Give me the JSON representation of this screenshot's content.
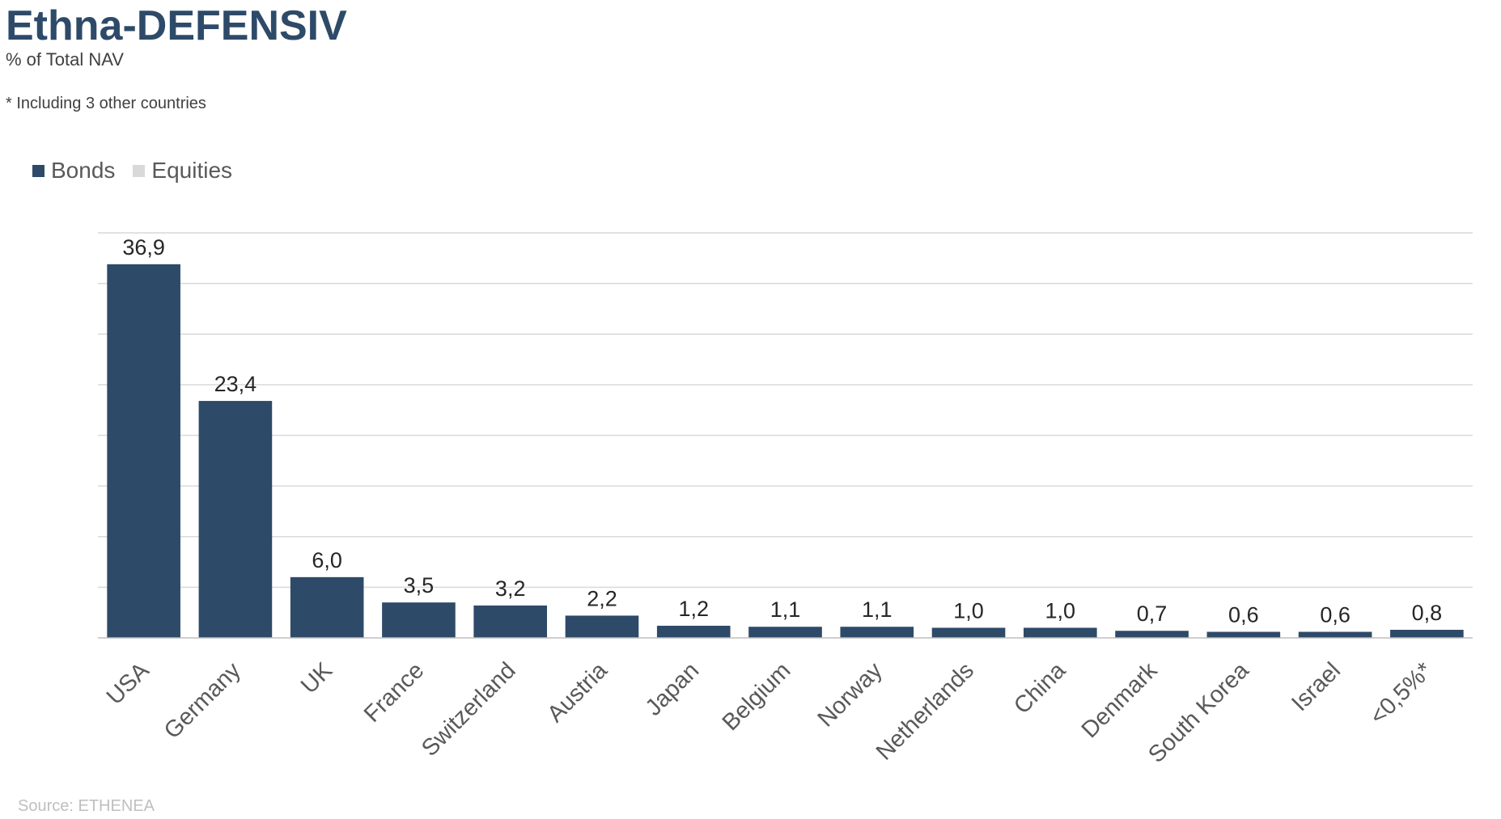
{
  "header": {
    "title": "Ethna-DEFENSIV",
    "subtitle": "% of Total NAV",
    "footnote": "* Including 3 other countries"
  },
  "legend": {
    "items": [
      {
        "label": "Bonds",
        "color": "#2e4a69"
      },
      {
        "label": "Equities",
        "color": "#d9d9d9"
      }
    ]
  },
  "source": "Source: ETHENEA",
  "colors": {
    "bonds": "#2e4a69",
    "equities": "#d9d9d9",
    "gridline": "#d9d9d9",
    "axis": "#bfbfbf"
  },
  "chart_data": {
    "type": "bar",
    "title": "Ethna-DEFENSIV",
    "subtitle": "% of Total NAV",
    "xlabel": "",
    "ylabel": "",
    "categories": [
      "USA",
      "Germany",
      "UK",
      "France",
      "Switzerland",
      "Austria",
      "Japan",
      "Belgium",
      "Norway",
      "Netherlands",
      "China",
      "Denmark",
      "South Korea",
      "Israel",
      "<0,5%*"
    ],
    "series": [
      {
        "name": "Bonds",
        "values": [
          36.9,
          23.4,
          6.0,
          3.5,
          3.2,
          2.2,
          1.2,
          1.1,
          1.1,
          1.0,
          1.0,
          0.7,
          0.6,
          0.6,
          0.8
        ],
        "labels": [
          "36,9",
          "23,4",
          "6,0",
          "3,5",
          "3,2",
          "2,2",
          "1,2",
          "1,1",
          "1,1",
          "1,0",
          "1,0",
          "0,7",
          "0,6",
          "0,6",
          "0,8"
        ]
      },
      {
        "name": "Equities",
        "values": [
          0,
          0,
          0,
          0,
          0,
          0,
          0,
          0,
          0,
          0,
          0,
          0,
          0,
          0,
          0
        ]
      }
    ],
    "ylim": [
      0,
      40
    ],
    "ygrid_step": 5,
    "grid": true,
    "legend_position": "top-left",
    "tick_label_rotation": -45
  }
}
